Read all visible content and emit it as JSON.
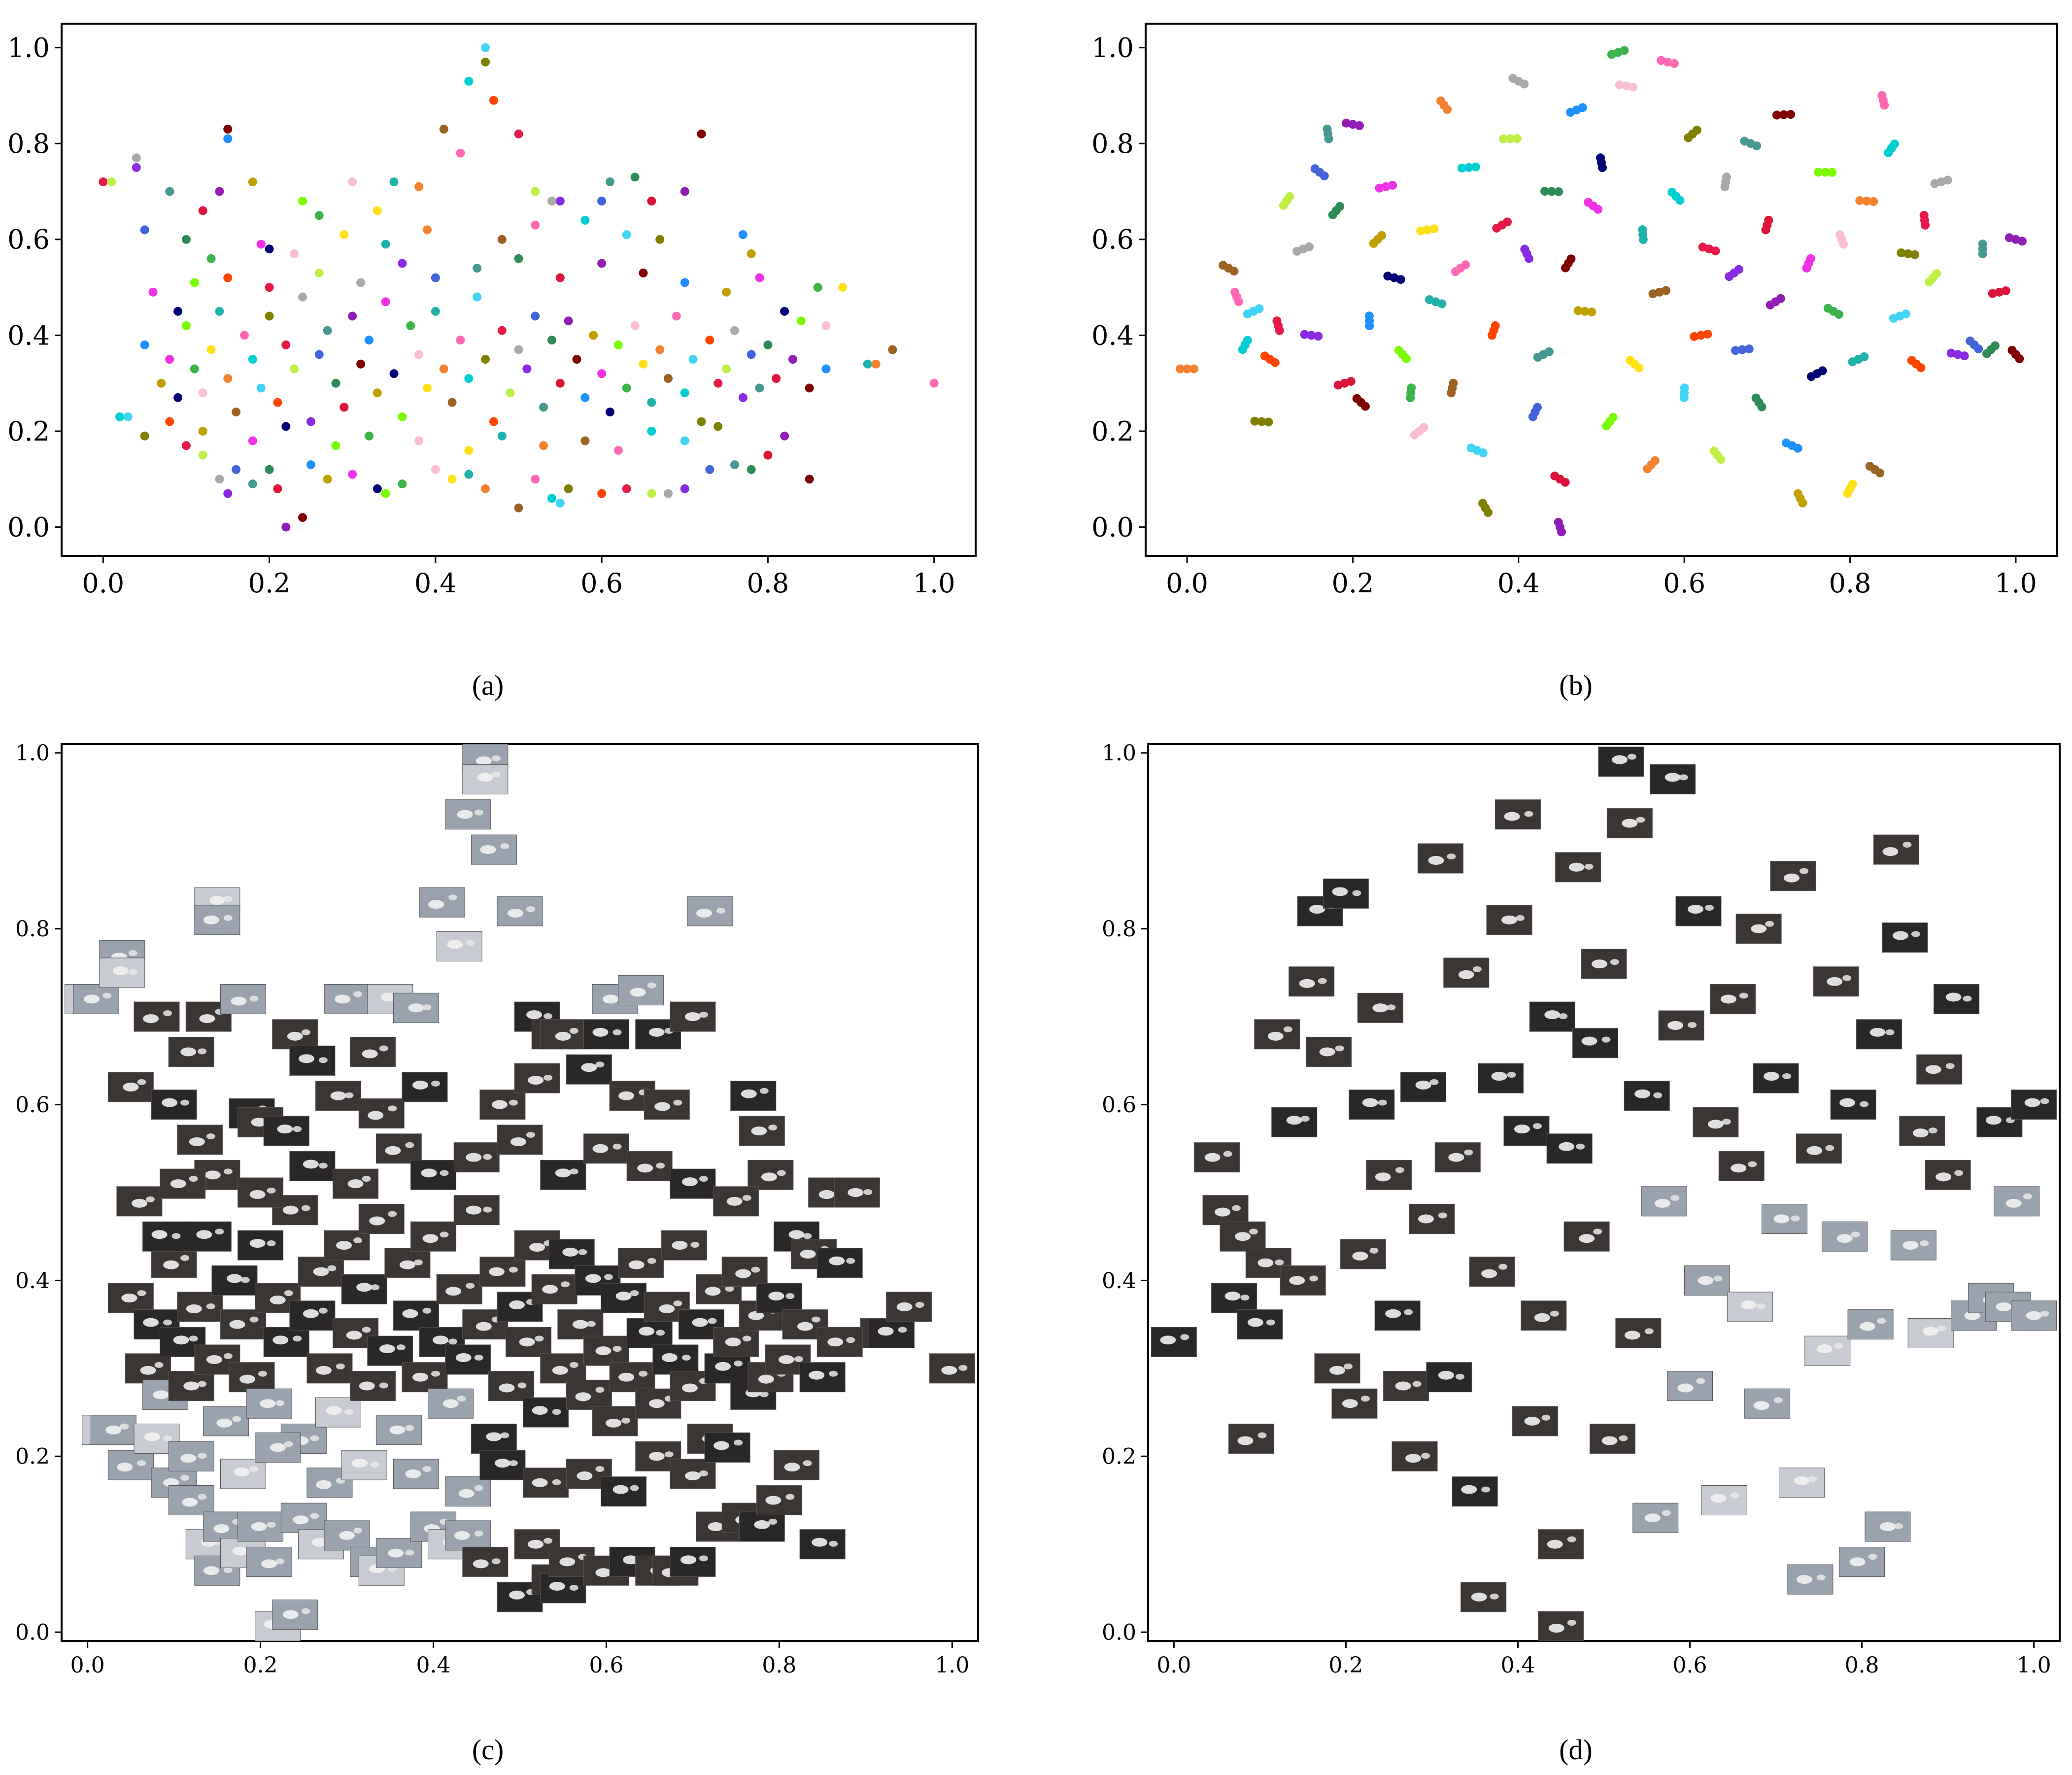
{
  "figure": {
    "panel_labels": [
      "(a)",
      "(b)",
      "(c)",
      "(d)"
    ]
  },
  "chart_data": [
    {
      "panel": "(a)",
      "type": "scatter",
      "title": "",
      "xlabel": "",
      "ylabel": "",
      "xlim": [
        -0.05,
        1.05
      ],
      "ylim": [
        -0.06,
        1.05
      ],
      "xticks": [
        "0.0",
        "0.2",
        "0.4",
        "0.6",
        "0.8",
        "1.0"
      ],
      "yticks": [
        "0.0",
        "0.2",
        "0.4",
        "0.6",
        "0.8",
        "1.0"
      ],
      "grid": false,
      "legend": "none",
      "marker": "colored dots, one color per identity",
      "points": [
        [
          0.0,
          0.72
        ],
        [
          0.01,
          0.72
        ],
        [
          0.04,
          0.77
        ],
        [
          0.04,
          0.75
        ],
        [
          0.05,
          0.62
        ],
        [
          0.08,
          0.7
        ],
        [
          0.1,
          0.6
        ],
        [
          0.12,
          0.66
        ],
        [
          0.14,
          0.7
        ],
        [
          0.15,
          0.83
        ],
        [
          0.15,
          0.81
        ],
        [
          0.18,
          0.72
        ],
        [
          0.19,
          0.59
        ],
        [
          0.2,
          0.58
        ],
        [
          0.24,
          0.68
        ],
        [
          0.26,
          0.65
        ],
        [
          0.3,
          0.72
        ],
        [
          0.33,
          0.66
        ],
        [
          0.35,
          0.72
        ],
        [
          0.38,
          0.71
        ],
        [
          0.41,
          0.83
        ],
        [
          0.43,
          0.78
        ],
        [
          0.44,
          0.93
        ],
        [
          0.46,
          1.0
        ],
        [
          0.46,
          0.97
        ],
        [
          0.47,
          0.89
        ],
        [
          0.5,
          0.82
        ],
        [
          0.52,
          0.7
        ],
        [
          0.54,
          0.68
        ],
        [
          0.55,
          0.68
        ],
        [
          0.6,
          0.68
        ],
        [
          0.61,
          0.72
        ],
        [
          0.64,
          0.73
        ],
        [
          0.66,
          0.68
        ],
        [
          0.7,
          0.7
        ],
        [
          0.72,
          0.82
        ],
        [
          0.77,
          0.61
        ],
        [
          0.78,
          0.57
        ],
        [
          0.79,
          0.52
        ],
        [
          0.82,
          0.45
        ],
        [
          0.84,
          0.43
        ],
        [
          0.86,
          0.5
        ],
        [
          0.87,
          0.42
        ],
        [
          0.89,
          0.5
        ],
        [
          0.92,
          0.34
        ],
        [
          0.93,
          0.34
        ],
        [
          0.95,
          0.37
        ],
        [
          1.0,
          0.3
        ],
        [
          0.02,
          0.23
        ],
        [
          0.03,
          0.23
        ],
        [
          0.05,
          0.19
        ],
        [
          0.08,
          0.22
        ],
        [
          0.1,
          0.17
        ],
        [
          0.12,
          0.15
        ],
        [
          0.14,
          0.1
        ],
        [
          0.15,
          0.07
        ],
        [
          0.16,
          0.12
        ],
        [
          0.18,
          0.09
        ],
        [
          0.2,
          0.12
        ],
        [
          0.21,
          0.08
        ],
        [
          0.22,
          0.0
        ],
        [
          0.24,
          0.02
        ],
        [
          0.25,
          0.13
        ],
        [
          0.27,
          0.1
        ],
        [
          0.3,
          0.11
        ],
        [
          0.33,
          0.08
        ],
        [
          0.34,
          0.07
        ],
        [
          0.36,
          0.09
        ],
        [
          0.4,
          0.12
        ],
        [
          0.42,
          0.1
        ],
        [
          0.44,
          0.11
        ],
        [
          0.46,
          0.08
        ],
        [
          0.5,
          0.04
        ],
        [
          0.52,
          0.1
        ],
        [
          0.54,
          0.06
        ],
        [
          0.55,
          0.05
        ],
        [
          0.56,
          0.08
        ],
        [
          0.6,
          0.07
        ],
        [
          0.63,
          0.08
        ],
        [
          0.66,
          0.07
        ],
        [
          0.68,
          0.07
        ],
        [
          0.7,
          0.08
        ],
        [
          0.73,
          0.12
        ],
        [
          0.76,
          0.13
        ],
        [
          0.78,
          0.12
        ],
        [
          0.8,
          0.15
        ],
        [
          0.82,
          0.19
        ],
        [
          0.85,
          0.1
        ],
        [
          0.05,
          0.38
        ],
        [
          0.07,
          0.3
        ],
        [
          0.08,
          0.35
        ],
        [
          0.09,
          0.27
        ],
        [
          0.1,
          0.42
        ],
        [
          0.11,
          0.33
        ],
        [
          0.12,
          0.28
        ],
        [
          0.13,
          0.37
        ],
        [
          0.14,
          0.45
        ],
        [
          0.15,
          0.31
        ],
        [
          0.16,
          0.24
        ],
        [
          0.17,
          0.4
        ],
        [
          0.18,
          0.35
        ],
        [
          0.19,
          0.29
        ],
        [
          0.2,
          0.44
        ],
        [
          0.21,
          0.26
        ],
        [
          0.22,
          0.38
        ],
        [
          0.23,
          0.33
        ],
        [
          0.24,
          0.48
        ],
        [
          0.25,
          0.22
        ],
        [
          0.26,
          0.36
        ],
        [
          0.27,
          0.41
        ],
        [
          0.28,
          0.3
        ],
        [
          0.29,
          0.25
        ],
        [
          0.3,
          0.44
        ],
        [
          0.31,
          0.34
        ],
        [
          0.32,
          0.39
        ],
        [
          0.33,
          0.28
        ],
        [
          0.34,
          0.47
        ],
        [
          0.35,
          0.32
        ],
        [
          0.36,
          0.23
        ],
        [
          0.37,
          0.42
        ],
        [
          0.38,
          0.36
        ],
        [
          0.39,
          0.29
        ],
        [
          0.4,
          0.45
        ],
        [
          0.41,
          0.33
        ],
        [
          0.42,
          0.26
        ],
        [
          0.43,
          0.39
        ],
        [
          0.44,
          0.31
        ],
        [
          0.45,
          0.48
        ],
        [
          0.46,
          0.35
        ],
        [
          0.47,
          0.22
        ],
        [
          0.48,
          0.41
        ],
        [
          0.49,
          0.28
        ],
        [
          0.5,
          0.37
        ],
        [
          0.51,
          0.33
        ],
        [
          0.52,
          0.44
        ],
        [
          0.53,
          0.25
        ],
        [
          0.54,
          0.39
        ],
        [
          0.55,
          0.3
        ],
        [
          0.56,
          0.43
        ],
        [
          0.57,
          0.35
        ],
        [
          0.58,
          0.27
        ],
        [
          0.59,
          0.4
        ],
        [
          0.6,
          0.32
        ],
        [
          0.61,
          0.24
        ],
        [
          0.62,
          0.38
        ],
        [
          0.63,
          0.29
        ],
        [
          0.64,
          0.42
        ],
        [
          0.65,
          0.34
        ],
        [
          0.66,
          0.26
        ],
        [
          0.67,
          0.37
        ],
        [
          0.68,
          0.31
        ],
        [
          0.69,
          0.44
        ],
        [
          0.7,
          0.28
        ],
        [
          0.71,
          0.35
        ],
        [
          0.72,
          0.22
        ],
        [
          0.73,
          0.39
        ],
        [
          0.74,
          0.3
        ],
        [
          0.75,
          0.33
        ],
        [
          0.76,
          0.41
        ],
        [
          0.77,
          0.27
        ],
        [
          0.78,
          0.36
        ],
        [
          0.79,
          0.29
        ],
        [
          0.8,
          0.38
        ],
        [
          0.81,
          0.31
        ],
        [
          0.83,
          0.35
        ],
        [
          0.85,
          0.29
        ],
        [
          0.87,
          0.33
        ],
        [
          0.12,
          0.2
        ],
        [
          0.18,
          0.18
        ],
        [
          0.22,
          0.21
        ],
        [
          0.28,
          0.17
        ],
        [
          0.32,
          0.19
        ],
        [
          0.38,
          0.18
        ],
        [
          0.44,
          0.16
        ],
        [
          0.48,
          0.19
        ],
        [
          0.53,
          0.17
        ],
        [
          0.58,
          0.18
        ],
        [
          0.62,
          0.16
        ],
        [
          0.66,
          0.2
        ],
        [
          0.7,
          0.18
        ],
        [
          0.74,
          0.21
        ],
        [
          0.15,
          0.52
        ],
        [
          0.2,
          0.5
        ],
        [
          0.26,
          0.53
        ],
        [
          0.31,
          0.51
        ],
        [
          0.36,
          0.55
        ],
        [
          0.4,
          0.52
        ],
        [
          0.45,
          0.54
        ],
        [
          0.5,
          0.56
        ],
        [
          0.55,
          0.52
        ],
        [
          0.6,
          0.55
        ],
        [
          0.65,
          0.53
        ],
        [
          0.7,
          0.51
        ],
        [
          0.75,
          0.49
        ],
        [
          0.06,
          0.49
        ],
        [
          0.09,
          0.45
        ],
        [
          0.11,
          0.51
        ],
        [
          0.13,
          0.56
        ],
        [
          0.23,
          0.57
        ],
        [
          0.29,
          0.61
        ],
        [
          0.34,
          0.59
        ],
        [
          0.39,
          0.62
        ],
        [
          0.48,
          0.6
        ],
        [
          0.52,
          0.63
        ],
        [
          0.58,
          0.64
        ],
        [
          0.63,
          0.61
        ],
        [
          0.67,
          0.6
        ]
      ]
    },
    {
      "panel": "(b)",
      "type": "scatter",
      "title": "",
      "xlabel": "",
      "ylabel": "",
      "xlim": [
        -0.05,
        1.05
      ],
      "ylim": [
        -0.06,
        1.05
      ],
      "xticks": [
        "0.0",
        "0.2",
        "0.4",
        "0.6",
        "0.8",
        "1.0"
      ],
      "yticks": [
        "0.0",
        "0.2",
        "0.4",
        "0.6",
        "0.8",
        "1.0"
      ],
      "grid": false,
      "legend": "none",
      "marker": "colored dots grouped in small same-color clusters",
      "points": [
        [
          0.0,
          0.33
        ],
        [
          0.05,
          0.54
        ],
        [
          0.06,
          0.48
        ],
        [
          0.07,
          0.38
        ],
        [
          0.08,
          0.45
        ],
        [
          0.09,
          0.22
        ],
        [
          0.1,
          0.35
        ],
        [
          0.11,
          0.42
        ],
        [
          0.12,
          0.68
        ],
        [
          0.14,
          0.58
        ],
        [
          0.15,
          0.4
        ],
        [
          0.16,
          0.74
        ],
        [
          0.17,
          0.82
        ],
        [
          0.18,
          0.66
        ],
        [
          0.19,
          0.3
        ],
        [
          0.2,
          0.84
        ],
        [
          0.21,
          0.26
        ],
        [
          0.22,
          0.43
        ],
        [
          0.23,
          0.6
        ],
        [
          0.24,
          0.71
        ],
        [
          0.25,
          0.52
        ],
        [
          0.26,
          0.36
        ],
        [
          0.27,
          0.28
        ],
        [
          0.28,
          0.2
        ],
        [
          0.29,
          0.62
        ],
        [
          0.3,
          0.47
        ],
        [
          0.31,
          0.88
        ],
        [
          0.32,
          0.29
        ],
        [
          0.33,
          0.54
        ],
        [
          0.34,
          0.75
        ],
        [
          0.35,
          0.16
        ],
        [
          0.36,
          0.04
        ],
        [
          0.37,
          0.41
        ],
        [
          0.38,
          0.63
        ],
        [
          0.39,
          0.81
        ],
        [
          0.4,
          0.93
        ],
        [
          0.41,
          0.57
        ],
        [
          0.42,
          0.24
        ],
        [
          0.43,
          0.36
        ],
        [
          0.44,
          0.7
        ],
        [
          0.45,
          0.1
        ],
        [
          0.45,
          0.0
        ],
        [
          0.46,
          0.55
        ],
        [
          0.47,
          0.87
        ],
        [
          0.48,
          0.45
        ],
        [
          0.49,
          0.67
        ],
        [
          0.5,
          0.76
        ],
        [
          0.51,
          0.22
        ],
        [
          0.52,
          0.99
        ],
        [
          0.53,
          0.92
        ],
        [
          0.54,
          0.34
        ],
        [
          0.55,
          0.61
        ],
        [
          0.56,
          0.13
        ],
        [
          0.57,
          0.49
        ],
        [
          0.58,
          0.97
        ],
        [
          0.59,
          0.69
        ],
        [
          0.6,
          0.28
        ],
        [
          0.61,
          0.82
        ],
        [
          0.62,
          0.4
        ],
        [
          0.63,
          0.58
        ],
        [
          0.64,
          0.15
        ],
        [
          0.65,
          0.72
        ],
        [
          0.66,
          0.53
        ],
        [
          0.67,
          0.37
        ],
        [
          0.68,
          0.8
        ],
        [
          0.69,
          0.26
        ],
        [
          0.7,
          0.63
        ],
        [
          0.71,
          0.47
        ],
        [
          0.72,
          0.86
        ],
        [
          0.73,
          0.17
        ],
        [
          0.74,
          0.06
        ],
        [
          0.75,
          0.55
        ],
        [
          0.76,
          0.32
        ],
        [
          0.77,
          0.74
        ],
        [
          0.78,
          0.45
        ],
        [
          0.79,
          0.6
        ],
        [
          0.8,
          0.08
        ],
        [
          0.81,
          0.35
        ],
        [
          0.82,
          0.68
        ],
        [
          0.83,
          0.12
        ],
        [
          0.84,
          0.89
        ],
        [
          0.85,
          0.79
        ],
        [
          0.86,
          0.44
        ],
        [
          0.87,
          0.57
        ],
        [
          0.88,
          0.34
        ],
        [
          0.89,
          0.64
        ],
        [
          0.9,
          0.52
        ],
        [
          0.91,
          0.72
        ],
        [
          0.93,
          0.36
        ],
        [
          0.95,
          0.38
        ],
        [
          0.96,
          0.58
        ],
        [
          0.97,
          0.37
        ],
        [
          0.98,
          0.49
        ],
        [
          1.0,
          0.6
        ],
        [
          1.0,
          0.36
        ]
      ]
    },
    {
      "panel": "(c)",
      "type": "scatter",
      "title": "",
      "xlabel": "",
      "ylabel": "",
      "xlim": [
        -0.03,
        1.03
      ],
      "ylim": [
        -0.01,
        1.01
      ],
      "xticks": [
        "0.0",
        "0.2",
        "0.4",
        "0.6",
        "0.8",
        "1.0"
      ],
      "yticks": [
        "0.0",
        "0.2",
        "0.4",
        "0.6",
        "0.8",
        "1.0"
      ],
      "grid": false,
      "legend": "none",
      "marker": "image thumbnails at the embedding positions of panel (a)",
      "points_ref": "same as panel (a)"
    },
    {
      "panel": "(d)",
      "type": "scatter",
      "title": "",
      "xlabel": "",
      "ylabel": "",
      "xlim": [
        -0.03,
        1.03
      ],
      "ylim": [
        -0.01,
        1.01
      ],
      "xticks": [
        "0.0",
        "0.2",
        "0.4",
        "0.6",
        "0.8",
        "1.0"
      ],
      "yticks": [
        "0.0",
        "0.2",
        "0.4",
        "0.6",
        "0.8",
        "1.0"
      ],
      "grid": false,
      "legend": "none",
      "marker": "image thumbnails at the embedding positions of panel (b)",
      "points_ref": "same as panel (b)"
    }
  ]
}
